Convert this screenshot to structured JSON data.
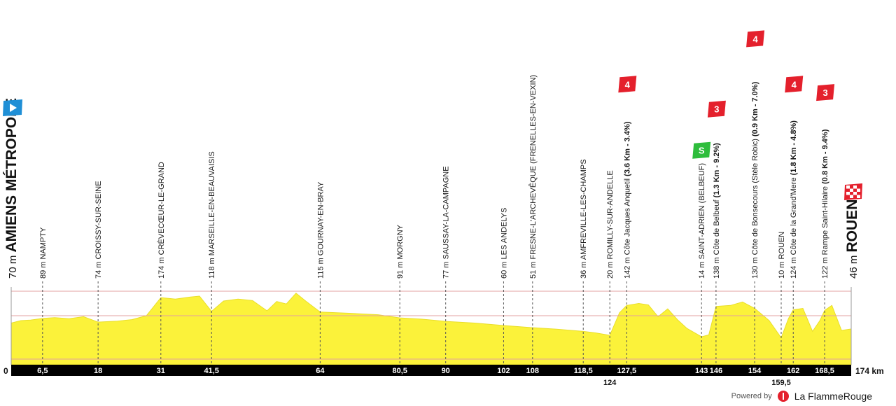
{
  "chart_data": {
    "type": "area",
    "title": "",
    "xlabel": "",
    "ylabel": "",
    "x_unit": "km",
    "xlim": [
      0,
      174
    ],
    "colors": {
      "profile_fill": "#fbf23a",
      "axis_bar": "#000000",
      "sprint": "#2ebd3c",
      "climb": "#e4202c",
      "start_flag": "#1f8fd6",
      "guide_line": "#e3a0a0"
    },
    "start": {
      "km": 0,
      "altitude": "70 m",
      "name": "AMIENS MÉTROPOLE",
      "icon": "start-flag-icon"
    },
    "finish": {
      "km": 174,
      "altitude": "46 m",
      "name": "ROUEN",
      "icon": "finish-checkered-icon"
    },
    "axis_ticks": {
      "left": "0",
      "right": "174 km",
      "above": [
        "6,5",
        "18",
        "31",
        "41,5",
        "64",
        "80,5",
        "90",
        "102",
        "108",
        "118,5",
        "127,5",
        "143",
        "146",
        "154",
        "162",
        "168,5"
      ],
      "below": [
        "124",
        "159,5"
      ]
    },
    "waypoints": [
      {
        "km": 6.5,
        "altitude": "89 m",
        "name": "NAMPTY"
      },
      {
        "km": 18,
        "altitude": "74 m",
        "name": "CROISSY-SUR-SEINE"
      },
      {
        "km": 31,
        "altitude": "174 m",
        "name": "CRÈVECŒUR-LE-GRAND"
      },
      {
        "km": 41.5,
        "altitude": "118 m",
        "name": "MARSEILLE-EN-BEAUVAISIS"
      },
      {
        "km": 64,
        "altitude": "115 m",
        "name": "GOURNAY-EN-BRAY"
      },
      {
        "km": 80.5,
        "altitude": "91 m",
        "name": "MORGNY"
      },
      {
        "km": 90,
        "altitude": "77 m",
        "name": "SAUSSAY-LA-CAMPAGNE"
      },
      {
        "km": 102,
        "altitude": "60 m",
        "name": "LES ANDELYS"
      },
      {
        "km": 108,
        "altitude": "51 m",
        "name": "FRESNE-L'ARCHEVÊQUE (FRENELLES-EN-VEXIN)"
      },
      {
        "km": 118.5,
        "altitude": "36 m",
        "name": "AMFREVILLE-LES-CHAMPS"
      },
      {
        "km": 124,
        "altitude": "20 m",
        "name": "ROMILLY-SUR-ANDELLE"
      },
      {
        "km": 127.5,
        "altitude": "142 m",
        "name": "Côte Jacques Anquetil",
        "climb": "(3.6 Km - 3.4%)",
        "category": "4"
      },
      {
        "km": 143,
        "altitude": "14 m",
        "name": "SAINT-ADRIEN (BELBEUF)",
        "sprint": "S"
      },
      {
        "km": 146,
        "altitude": "138 m",
        "name": "Côte de Belbeuf",
        "climb": "(1.3 Km - 9.2%)",
        "category": "3"
      },
      {
        "km": 154,
        "altitude": "130 m",
        "name": "Côte de Bonsecours (Stèle Robic)",
        "climb": "(0.9 Km - 7.0%)",
        "category": "4"
      },
      {
        "km": 159.5,
        "altitude": "10 m",
        "name": "ROUEN"
      },
      {
        "km": 162,
        "altitude": "124 m",
        "name": "Côte de la Grand'Mere",
        "climb": "(1.8 Km - 4.8%)",
        "category": "4"
      },
      {
        "km": 168.5,
        "altitude": "122 m",
        "name": "Rampe Saint-Hilaire",
        "climb": "(0.8 Km - 9.4%)",
        "category": "3"
      }
    ],
    "profile_altitude_m": [
      [
        0,
        70
      ],
      [
        2,
        80
      ],
      [
        4,
        82
      ],
      [
        6.5,
        89
      ],
      [
        9,
        92
      ],
      [
        12,
        88
      ],
      [
        15,
        96
      ],
      [
        18,
        74
      ],
      [
        22,
        78
      ],
      [
        25,
        84
      ],
      [
        28,
        100
      ],
      [
        31,
        174
      ],
      [
        34,
        168
      ],
      [
        37,
        176
      ],
      [
        39,
        180
      ],
      [
        41.5,
        118
      ],
      [
        44,
        160
      ],
      [
        47,
        168
      ],
      [
        50,
        162
      ],
      [
        53,
        120
      ],
      [
        55,
        158
      ],
      [
        57,
        148
      ],
      [
        59,
        192
      ],
      [
        61,
        160
      ],
      [
        64,
        115
      ],
      [
        70,
        110
      ],
      [
        76,
        104
      ],
      [
        80.5,
        91
      ],
      [
        85,
        86
      ],
      [
        90,
        77
      ],
      [
        96,
        70
      ],
      [
        102,
        60
      ],
      [
        108,
        51
      ],
      [
        113,
        45
      ],
      [
        118.5,
        36
      ],
      [
        121,
        30
      ],
      [
        124,
        20
      ],
      [
        126,
        112
      ],
      [
        127.5,
        142
      ],
      [
        130,
        150
      ],
      [
        132,
        144
      ],
      [
        134,
        96
      ],
      [
        136,
        128
      ],
      [
        138,
        84
      ],
      [
        140,
        48
      ],
      [
        143,
        14
      ],
      [
        144.5,
        22
      ],
      [
        146,
        138
      ],
      [
        149,
        142
      ],
      [
        151.5,
        156
      ],
      [
        154,
        130
      ],
      [
        157,
        80
      ],
      [
        159.5,
        10
      ],
      [
        161,
        88
      ],
      [
        162,
        124
      ],
      [
        164,
        130
      ],
      [
        166,
        36
      ],
      [
        167.5,
        80
      ],
      [
        168.5,
        122
      ],
      [
        170,
        142
      ],
      [
        172,
        40
      ],
      [
        174,
        46
      ]
    ],
    "guide_lines_m": [
      100,
      200
    ]
  },
  "credit": {
    "powered": "Powered by",
    "brand": "La FlammeRouge",
    "icon": "flamme-rouge-logo-icon"
  }
}
